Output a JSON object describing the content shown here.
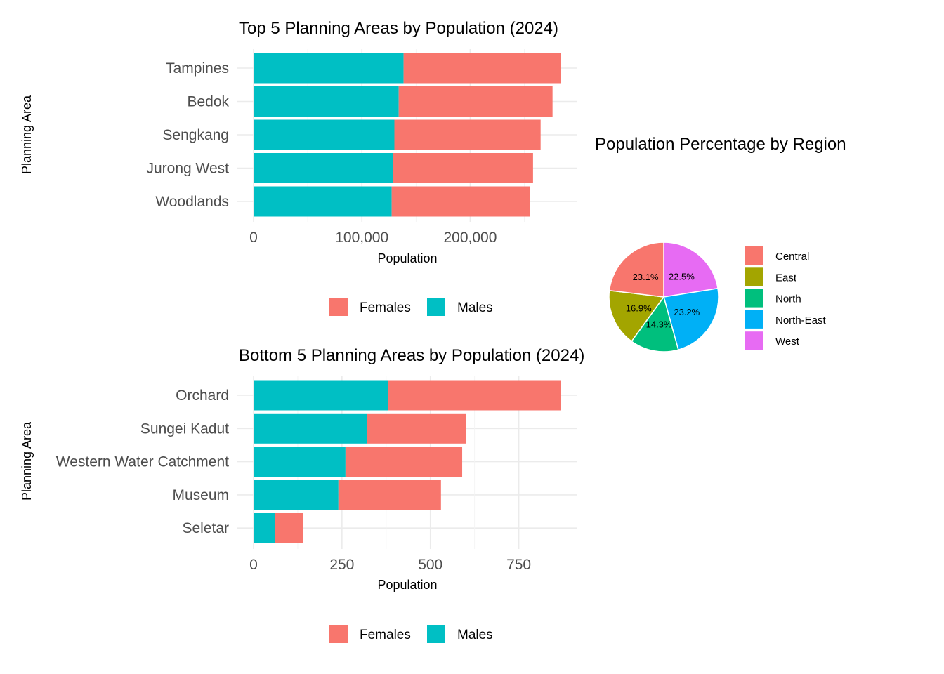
{
  "colors": {
    "females": "#F8766D",
    "males": "#00BFC4"
  },
  "chart_data": [
    {
      "type": "bar",
      "orientation": "horizontal",
      "stacked": true,
      "title": "Top 5 Planning Areas by Population (2024)",
      "xlabel": "Population",
      "ylabel": "Planning Area",
      "categories": [
        "Tampines",
        "Bedok",
        "Sengkang",
        "Jurong West",
        "Woodlands"
      ],
      "series": [
        {
          "name": "Males",
          "values": [
            138500,
            134000,
            130000,
            128500,
            127500
          ]
        },
        {
          "name": "Females",
          "values": [
            145500,
            142000,
            135000,
            129500,
            127500
          ]
        }
      ],
      "xlim": [
        0,
        284000
      ],
      "xticks": [
        0,
        100000,
        200000
      ],
      "xtick_labels": [
        "0",
        "100,000",
        "200,000"
      ],
      "legend": [
        "Females",
        "Males"
      ],
      "legend_position": "bottom",
      "grid": true
    },
    {
      "type": "bar",
      "orientation": "horizontal",
      "stacked": true,
      "title": "Bottom 5 Planning Areas by Population (2024)",
      "xlabel": "Population",
      "ylabel": "Planning Area",
      "categories": [
        "Orchard",
        "Sungei Kadut",
        "Western Water Catchment",
        "Museum",
        "Seletar"
      ],
      "series": [
        {
          "name": "Males",
          "values": [
            380,
            320,
            260,
            240,
            60
          ]
        },
        {
          "name": "Females",
          "values": [
            490,
            280,
            330,
            290,
            80
          ]
        }
      ],
      "xlim": [
        0,
        870
      ],
      "xticks": [
        0,
        250,
        500,
        750
      ],
      "xtick_labels": [
        "0",
        "250",
        "500",
        "750"
      ],
      "legend": [
        "Females",
        "Males"
      ],
      "legend_position": "bottom",
      "grid": true
    },
    {
      "type": "pie",
      "title": "Population Percentage by Region",
      "slices": [
        {
          "name": "Central",
          "value": 23.1,
          "label": "23.1%",
          "color": "#F8766D"
        },
        {
          "name": "East",
          "value": 16.9,
          "label": "16.9%",
          "color": "#A3A500"
        },
        {
          "name": "North",
          "value": 14.3,
          "label": "14.3%",
          "color": "#00BF7D"
        },
        {
          "name": "North-East",
          "value": 23.2,
          "label": "23.2%",
          "color": "#00B0F6"
        },
        {
          "name": "West",
          "value": 22.5,
          "label": "22.5%",
          "color": "#E76BF3"
        }
      ],
      "legend_position": "right"
    }
  ]
}
